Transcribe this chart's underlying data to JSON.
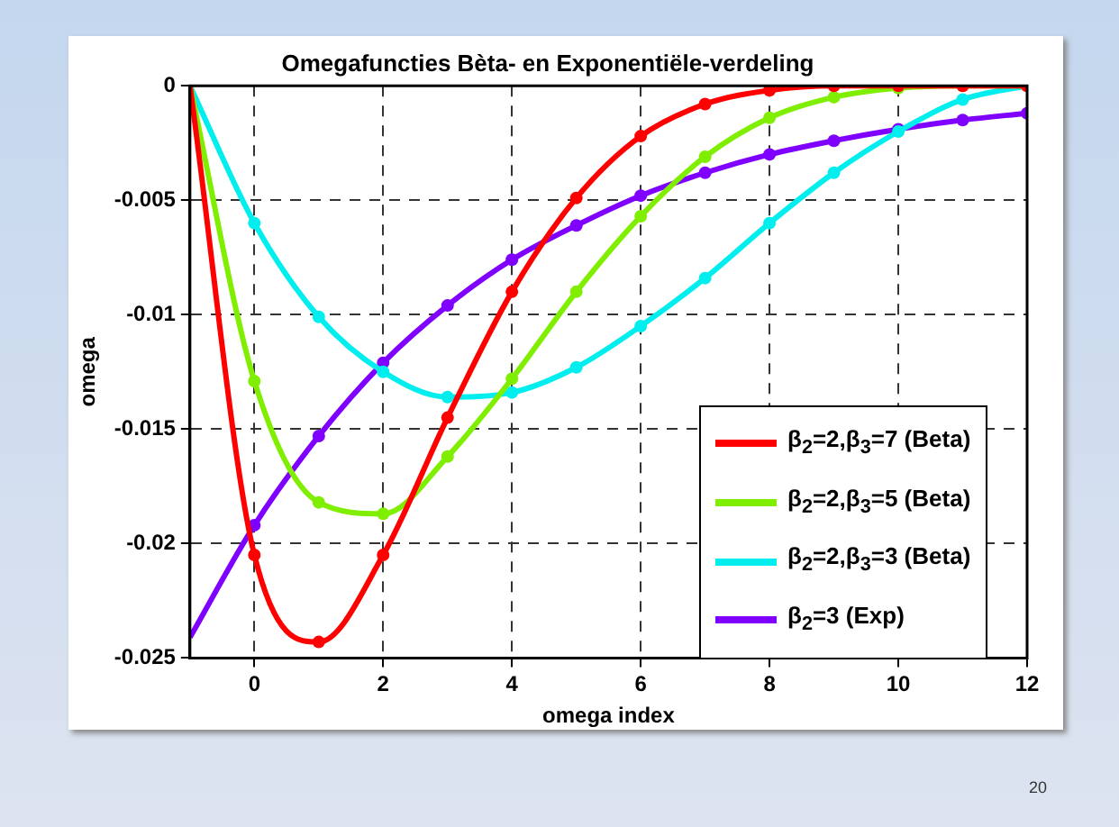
{
  "chart_data": {
    "type": "line",
    "title": "Omegafuncties Bèta- en Exponentiële-verdeling",
    "xlabel": "omega index",
    "ylabel": "omega",
    "x": [
      -1,
      0,
      1,
      2,
      3,
      4,
      5,
      6,
      7,
      8,
      9,
      10,
      11,
      12
    ],
    "series": [
      {
        "name": "β$_{2}$=2,β$_{3}$=7 (Beta)",
        "color": "#ff0000",
        "values": [
          0,
          -0.0205,
          -0.0243,
          -0.0205,
          -0.0145,
          -0.009,
          -0.0049,
          -0.0022,
          -0.0008,
          -0.0002,
          0,
          0,
          0,
          0
        ]
      },
      {
        "name": "β$_{2}$=2,β$_{3}$=5 (Beta)",
        "color": "#80ee00",
        "values": [
          0,
          -0.0129,
          -0.0182,
          -0.0187,
          -0.0162,
          -0.0128,
          -0.009,
          -0.0057,
          -0.0031,
          -0.0014,
          -0.0005,
          -0.0001,
          0,
          0
        ]
      },
      {
        "name": "β$_{2}$=2,β$_{3}$=3 (Beta)",
        "color": "#00eeee",
        "values": [
          0,
          -0.006,
          -0.0101,
          -0.0125,
          -0.0136,
          -0.0134,
          -0.0123,
          -0.0105,
          -0.0084,
          -0.006,
          -0.0038,
          -0.002,
          -0.0006,
          0
        ]
      },
      {
        "name": "β$_{2}$=3 (Exp)",
        "color": "#7f00ff",
        "values": [
          -0.0241,
          -0.0192,
          -0.0153,
          -0.0121,
          -0.0096,
          -0.0076,
          -0.0061,
          -0.0048,
          -0.0038,
          -0.003,
          -0.0024,
          -0.0019,
          -0.0015,
          -0.0012
        ]
      }
    ],
    "xlim": [
      -1,
      12
    ],
    "xticks": [
      0,
      2,
      4,
      6,
      8,
      10,
      12
    ],
    "ylim": [
      -0.025,
      0
    ],
    "yticks": [
      -0.025,
      -0.02,
      -0.015,
      -0.01,
      -0.005,
      0
    ],
    "grid": true,
    "legend": "bottom right",
    "marker": "circle",
    "line_style": "solid",
    "annotations": [
      "20"
    ]
  }
}
